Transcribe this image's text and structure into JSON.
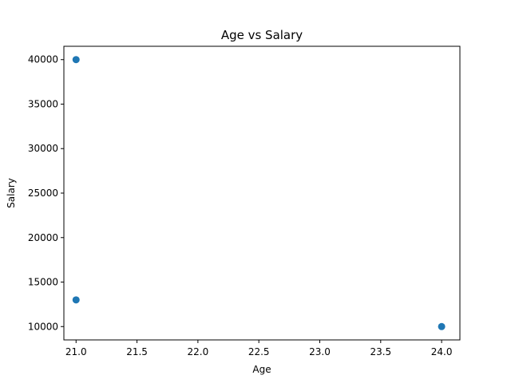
{
  "chart_data": {
    "type": "scatter",
    "title": "Age vs Salary",
    "xlabel": "Age",
    "ylabel": "Salary",
    "xlim": [
      20.9,
      24.15
    ],
    "ylim": [
      8500,
      41500
    ],
    "x_ticks": [
      21.0,
      21.5,
      22.0,
      22.5,
      23.0,
      23.5,
      24.0
    ],
    "x_tick_labels": [
      "21.0",
      "21.5",
      "22.0",
      "22.5",
      "23.0",
      "23.5",
      "24.0"
    ],
    "y_ticks": [
      10000,
      15000,
      20000,
      25000,
      30000,
      35000,
      40000
    ],
    "y_tick_labels": [
      "10000",
      "15000",
      "20000",
      "25000",
      "30000",
      "35000",
      "40000"
    ],
    "grid": false,
    "legend": "none",
    "marker_color": "#1f77b4",
    "points": [
      {
        "x": 21,
        "y": 40000
      },
      {
        "x": 21,
        "y": 13000
      },
      {
        "x": 24,
        "y": 10000
      }
    ]
  }
}
